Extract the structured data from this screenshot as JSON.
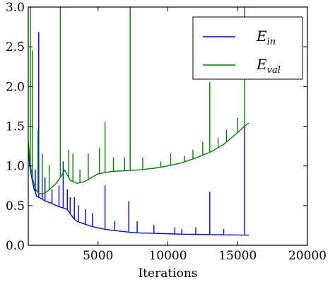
{
  "chart_data": {
    "type": "line",
    "title": "",
    "xlabel": "Iterations",
    "ylabel": "",
    "xlim": [
      0,
      20000
    ],
    "ylim": [
      0.0,
      3.0
    ],
    "xticks": [
      5000,
      10000,
      15000,
      20000
    ],
    "xtick_labels": [
      "5000",
      "10000",
      "15000",
      "20000"
    ],
    "yticks": [
      0.0,
      0.5,
      1.0,
      1.5,
      2.0,
      2.5,
      3.0
    ],
    "ytick_labels": [
      "0.0",
      "0.5",
      "1.0",
      "1.5",
      "2.0",
      "2.5",
      "3.0"
    ],
    "grid": false,
    "legend": "top-right",
    "series": [
      {
        "name": "E_in",
        "legend_main": "E",
        "legend_sub": "in",
        "color": "#0000ff",
        "x": [
          0,
          100,
          250,
          400,
          600,
          800,
          1000,
          1200,
          1500,
          1800,
          2000,
          2300,
          2500,
          2800,
          3000,
          3200,
          3500,
          4000,
          4500,
          5000,
          5500,
          6000,
          6500,
          7000,
          7500,
          8000,
          9000,
          10000,
          11000,
          12000,
          13000,
          14000,
          15000,
          15500,
          15800
        ],
        "values": [
          1.25,
          1.0,
          0.85,
          0.72,
          0.62,
          0.6,
          0.58,
          0.56,
          0.54,
          0.52,
          0.5,
          0.48,
          0.47,
          0.45,
          0.4,
          0.35,
          0.3,
          0.27,
          0.24,
          0.22,
          0.2,
          0.19,
          0.18,
          0.17,
          0.16,
          0.155,
          0.15,
          0.145,
          0.14,
          0.138,
          0.135,
          0.132,
          0.13,
          0.128,
          0.128
        ],
        "spikes": [
          [
            500,
            0.95
          ],
          [
            750,
            2.68
          ],
          [
            1000,
            0.9
          ],
          [
            1200,
            0.85
          ],
          [
            1700,
            0.7
          ],
          [
            2200,
            0.75
          ],
          [
            2500,
            1.05
          ],
          [
            2800,
            0.7
          ],
          [
            3000,
            0.6
          ],
          [
            3300,
            0.6
          ],
          [
            3600,
            0.5
          ],
          [
            4100,
            0.45
          ],
          [
            4600,
            0.4
          ],
          [
            5500,
            0.75
          ],
          [
            6200,
            0.3
          ],
          [
            7200,
            0.55
          ],
          [
            7800,
            0.3
          ],
          [
            9000,
            0.25
          ],
          [
            10500,
            0.22
          ],
          [
            11000,
            0.2
          ],
          [
            12000,
            0.22
          ],
          [
            13000,
            0.67
          ],
          [
            14000,
            0.2
          ],
          [
            15500,
            1.5
          ]
        ]
      },
      {
        "name": "E_val",
        "legend_main": "E",
        "legend_sub": "val",
        "color": "#008000",
        "x": [
          0,
          100,
          200,
          300,
          400,
          500,
          600,
          800,
          1000,
          1200,
          1500,
          2000,
          2400,
          2600,
          3000,
          3500,
          4000,
          4500,
          5000,
          6000,
          7000,
          8000,
          9000,
          10000,
          11000,
          12000,
          13000,
          14000,
          15000,
          15500,
          15800
        ],
        "values": [
          1.3,
          1.1,
          0.95,
          0.85,
          0.78,
          0.72,
          0.68,
          0.65,
          0.65,
          0.66,
          0.7,
          0.78,
          0.88,
          0.95,
          0.82,
          0.78,
          0.8,
          0.85,
          0.9,
          0.93,
          0.94,
          0.95,
          0.97,
          1.0,
          1.04,
          1.1,
          1.17,
          1.27,
          1.42,
          1.5,
          1.54
        ],
        "spikes": [
          [
            150,
            3.0
          ],
          [
            300,
            2.45
          ],
          [
            700,
            1.45
          ],
          [
            1000,
            1.15
          ],
          [
            1500,
            1.0
          ],
          [
            2300,
            3.0
          ],
          [
            2900,
            1.2
          ],
          [
            3200,
            1.15
          ],
          [
            3700,
            0.95
          ],
          [
            4300,
            1.15
          ],
          [
            5100,
            1.22
          ],
          [
            5500,
            1.55
          ],
          [
            6100,
            1.1
          ],
          [
            6900,
            1.1
          ],
          [
            7300,
            3.0
          ],
          [
            8200,
            1.1
          ],
          [
            9500,
            1.05
          ],
          [
            10200,
            1.15
          ],
          [
            11200,
            1.12
          ],
          [
            11800,
            1.2
          ],
          [
            12500,
            1.3
          ],
          [
            13000,
            2.05
          ],
          [
            13600,
            1.35
          ],
          [
            14200,
            1.45
          ],
          [
            15000,
            1.6
          ],
          [
            15500,
            3.0
          ]
        ]
      }
    ]
  }
}
